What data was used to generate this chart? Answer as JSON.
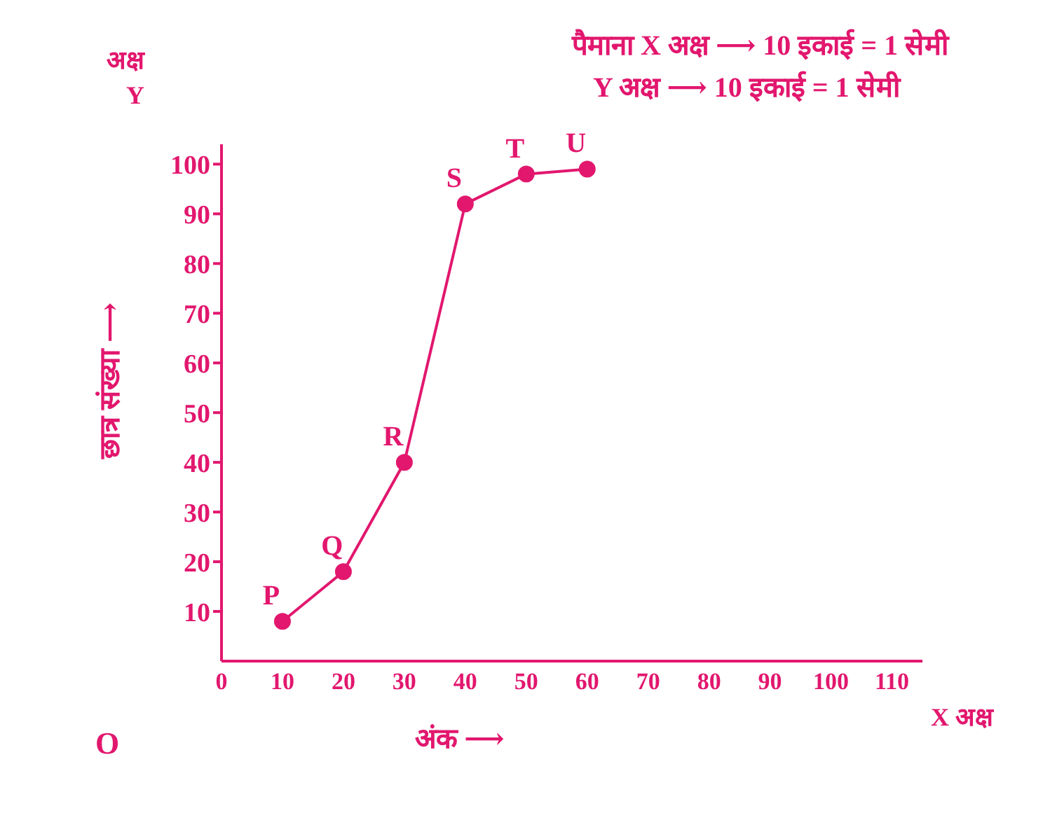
{
  "chart_data": {
    "type": "line",
    "xlabel": "अंक ⟶",
    "ylabel": "छात्र संख्या ⟶",
    "x": [
      10,
      20,
      30,
      40,
      50,
      60
    ],
    "series": [
      {
        "color": "#e2176e",
        "values": [
          8,
          18,
          40,
          92,
          98,
          99
        ]
      }
    ],
    "xlim": [
      0,
      115
    ],
    "ylim": [
      0,
      104
    ],
    "xticks": [
      0,
      10,
      20,
      30,
      40,
      50,
      60,
      70,
      80,
      90,
      100,
      110
    ],
    "yticks": [
      10,
      20,
      30,
      40,
      50,
      60,
      70,
      80,
      90,
      100
    ],
    "grid": false,
    "legend": false,
    "marker": "circle",
    "line_style": "solid",
    "annotations": [
      {
        "text": "P",
        "x": 10,
        "y": 8
      },
      {
        "text": "Q",
        "x": 20,
        "y": 18
      },
      {
        "text": "R",
        "x": 30,
        "y": 40
      },
      {
        "text": "S",
        "x": 40,
        "y": 92
      },
      {
        "text": "T",
        "x": 50,
        "y": 98
      },
      {
        "text": "U",
        "x": 60,
        "y": 99
      },
      "पैमाना X अक्ष ⟶ 10 इकाई = 1 सेमी",
      "Y अक्ष ⟶ 10 इकाई = 1 सेमी",
      "अक्ष",
      "Y",
      "X अक्ष",
      "O"
    ]
  }
}
